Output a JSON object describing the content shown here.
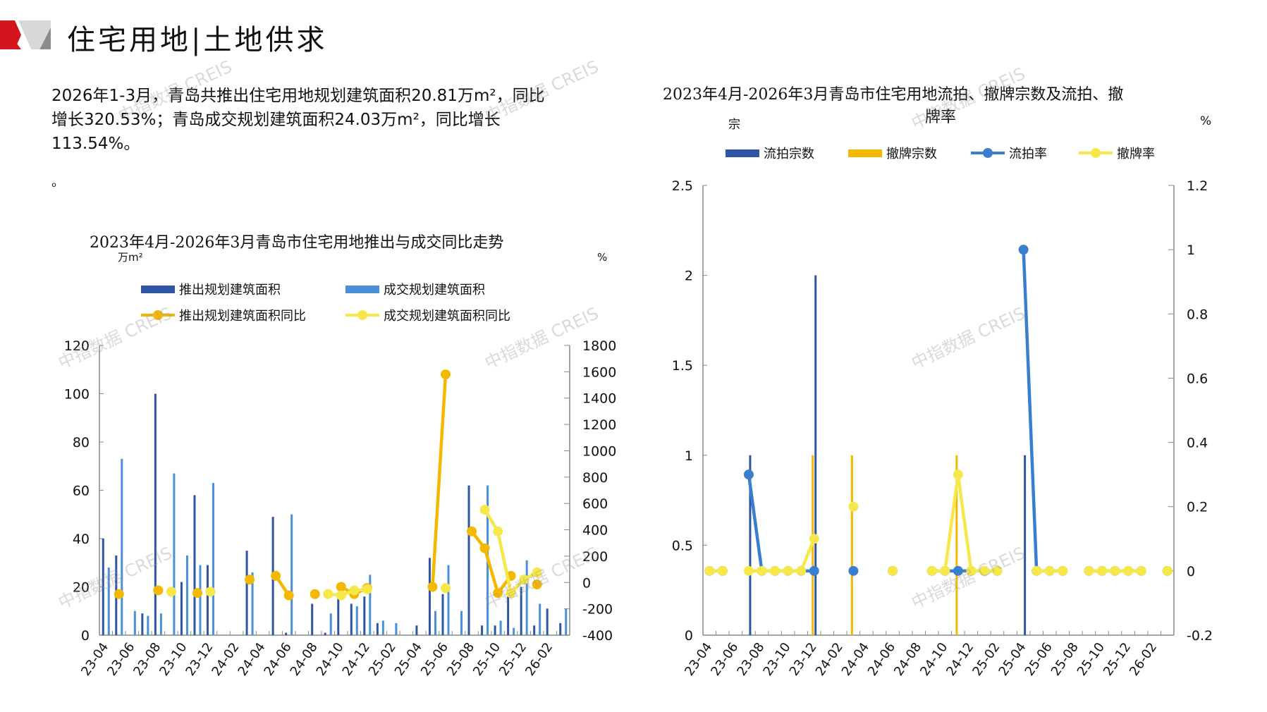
{
  "header": {
    "title": "住宅用地|土地供求"
  },
  "summary": {
    "lines": [
      "2026年1-3月，青岛共推出住宅用地规划建筑面积20.81万m²，同比",
      "增长320.53%；青岛成交规划建筑面积24.03万m²，同比增长",
      "113.54%。"
    ],
    "tail": "。"
  },
  "watermark": "中指数据 CREIS",
  "colors": {
    "dark_blue": "#2f55a4",
    "light_blue": "#4a90d9",
    "orange": "#f5b800",
    "yellow": "#f7e84a",
    "blue_line": "#3a7ecf",
    "axis": "#888888"
  },
  "chart_data": [
    {
      "type": "bar+line",
      "title": "2023年4月-2026年3月青岛市住宅用地推出与成交同比走势",
      "ylabel_left": "万m²",
      "ylabel_right": "%",
      "ylim_left": [
        0,
        120
      ],
      "ylim_right": [
        -400,
        1800
      ],
      "yticks_left": [
        "0",
        "20",
        "40",
        "60",
        "80",
        "100",
        "120"
      ],
      "yticks_right": [
        "-400",
        "-200",
        "0",
        "200",
        "400",
        "600",
        "800",
        "1000",
        "1200",
        "1400",
        "1600",
        "1800"
      ],
      "xtick_labels": [
        "23-04",
        "23-06",
        "23-08",
        "23-10",
        "23-12",
        "24-02",
        "24-04",
        "24-06",
        "24-08",
        "24-10",
        "24-12",
        "25-02",
        "25-04",
        "25-06",
        "25-08",
        "25-10",
        "25-12",
        "26-02"
      ],
      "months": 36,
      "legend": [
        "推出规划建筑面积",
        "成交规划建筑面积",
        "推出规划建筑面积同比",
        "成交规划建筑面积同比"
      ],
      "series": [
        {
          "name": "推出规划建筑面积",
          "axis": "left",
          "kind": "bar",
          "values": [
            40,
            33,
            0,
            9,
            100,
            0,
            22,
            58,
            29,
            0,
            0,
            35,
            0,
            49,
            1,
            0,
            13,
            1,
            15,
            13,
            16,
            5,
            0,
            0,
            4,
            32,
            17,
            0,
            62,
            4,
            4,
            16,
            20,
            4,
            11,
            5
          ]
        },
        {
          "name": "成交规划建筑面积",
          "axis": "left",
          "kind": "bar",
          "values": [
            28,
            73,
            10,
            8,
            9,
            67,
            33,
            29,
            63,
            0,
            0,
            26,
            0,
            0,
            50,
            0,
            0,
            9,
            0,
            12,
            25,
            6,
            5,
            0,
            0,
            10,
            29,
            10,
            0,
            62,
            6,
            3,
            31,
            13,
            0,
            11
          ]
        },
        {
          "name": "推出规划建筑面积同比",
          "axis": "right",
          "kind": "line",
          "values": [
            null,
            -88,
            null,
            null,
            -60,
            null,
            null,
            -80,
            null,
            null,
            null,
            22,
            null,
            50,
            -98,
            null,
            -88,
            null,
            -33,
            -88,
            -42,
            null,
            null,
            null,
            null,
            -33,
            1580,
            null,
            388,
            260,
            -80,
            50,
            null,
            -15,
            null,
            null
          ]
        },
        {
          "name": "成交规划建筑面积同比",
          "axis": "right",
          "kind": "line",
          "values": [
            null,
            null,
            null,
            null,
            null,
            -70,
            null,
            null,
            -70,
            null,
            null,
            null,
            null,
            null,
            null,
            null,
            null,
            -88,
            -98,
            -60,
            -52,
            null,
            null,
            null,
            null,
            null,
            -42,
            null,
            null,
            553,
            388,
            -80,
            22,
            77,
            null,
            null
          ]
        }
      ]
    },
    {
      "type": "bar+line",
      "title_lines": [
        "2023年4月-2026年3月青岛市住宅用地流拍、撤牌宗数及流拍、撤",
        "牌率"
      ],
      "ylabel_left": "宗",
      "ylabel_right": "%",
      "ylim_left": [
        0,
        2.5
      ],
      "ylim_right": [
        -0.2,
        1.2
      ],
      "yticks_left": [
        "0",
        "0.5",
        "1",
        "1.5",
        "2",
        "2.5"
      ],
      "yticks_right": [
        "-0.2",
        "0",
        "0.2",
        "0.4",
        "0.6",
        "0.8",
        "1",
        "1.2"
      ],
      "xtick_labels": [
        "23-04",
        "23-06",
        "23-08",
        "23-10",
        "23-12",
        "24-02",
        "24-04",
        "24-06",
        "24-08",
        "24-10",
        "24-12",
        "25-02",
        "25-04",
        "25-06",
        "25-08",
        "25-10",
        "25-12",
        "26-02"
      ],
      "months": 36,
      "legend": [
        "流拍宗数",
        "撤牌宗数",
        "流拍率",
        "撤牌率"
      ],
      "series": [
        {
          "name": "流拍宗数",
          "axis": "left",
          "kind": "bar",
          "values": [
            0,
            0,
            0,
            1,
            0,
            0,
            0,
            0,
            2,
            0,
            0,
            0,
            0,
            0,
            0,
            0,
            0,
            0,
            0,
            0,
            0,
            0,
            0,
            0,
            1,
            0,
            0,
            0,
            0,
            0,
            0,
            0,
            0,
            0,
            0,
            0
          ]
        },
        {
          "name": "撤牌宗数",
          "axis": "left",
          "kind": "bar",
          "values": [
            0,
            0,
            0,
            0,
            0,
            0,
            0,
            0,
            1,
            0,
            0,
            1,
            0,
            0,
            0,
            0,
            0,
            0,
            0,
            1,
            0,
            0,
            0,
            0,
            0,
            0,
            0,
            0,
            0,
            0,
            0,
            0,
            0,
            0,
            0,
            0
          ]
        },
        {
          "name": "流拍率",
          "axis": "right",
          "kind": "line",
          "values": [
            0,
            0,
            null,
            0.3,
            0,
            0,
            0,
            0,
            0,
            null,
            null,
            0,
            null,
            null,
            0,
            null,
            null,
            0,
            0,
            0,
            0,
            0,
            0,
            null,
            1.0,
            0,
            0,
            0,
            null,
            0,
            0,
            0,
            0,
            0,
            null,
            0
          ]
        },
        {
          "name": "撤牌率",
          "axis": "right",
          "kind": "line",
          "values": [
            0,
            0,
            null,
            0,
            0,
            0,
            0,
            0,
            0.1,
            null,
            null,
            0.2,
            null,
            null,
            0,
            null,
            null,
            0,
            0,
            0.3,
            0,
            0,
            0,
            null,
            null,
            0,
            0,
            0,
            null,
            0,
            0,
            0,
            0,
            0,
            null,
            0
          ]
        }
      ]
    }
  ]
}
